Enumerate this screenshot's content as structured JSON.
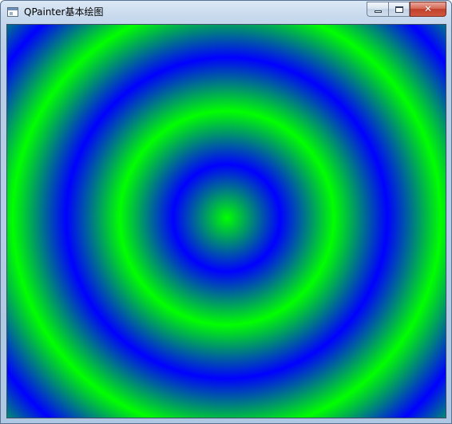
{
  "window": {
    "title": "QPainter基本绘图",
    "icon": "app-window-icon",
    "caption_buttons": {
      "minimize": "minimize-icon",
      "maximize": "maximize-icon",
      "close": "close-icon"
    }
  },
  "canvas": {
    "content": "radial-gradient-rings",
    "gradient_spread": "repeat",
    "colors": {
      "green": "#00ff00",
      "blue": "#0000ff"
    }
  }
}
